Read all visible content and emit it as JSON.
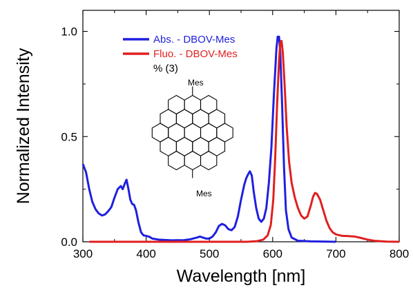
{
  "chart_data": {
    "type": "line",
    "xlabel": "Wavelength [nm]",
    "ylabel": "Normalized Intensity",
    "xlim": [
      300,
      800
    ],
    "ylim": [
      0,
      1.1
    ],
    "x_ticks": [
      "300",
      "400",
      "500",
      "600",
      "700",
      "800"
    ],
    "y_ticks": [
      "0.0",
      "0.5",
      "1.0"
    ],
    "legend_position": "top-left",
    "grid": false,
    "annotation": "% (3)",
    "structure_labels": [
      "Mes",
      "Mes"
    ],
    "series": [
      {
        "name": "Abs. - DBOV-Mes",
        "color": "#1f1fe0",
        "points": [
          [
            300,
            0.37
          ],
          [
            305,
            0.33
          ],
          [
            310,
            0.25
          ],
          [
            315,
            0.19
          ],
          [
            320,
            0.155
          ],
          [
            325,
            0.135
          ],
          [
            330,
            0.125
          ],
          [
            335,
            0.13
          ],
          [
            340,
            0.145
          ],
          [
            345,
            0.165
          ],
          [
            350,
            0.21
          ],
          [
            355,
            0.25
          ],
          [
            360,
            0.265
          ],
          [
            363,
            0.25
          ],
          [
            366,
            0.275
          ],
          [
            369,
            0.295
          ],
          [
            372,
            0.25
          ],
          [
            375,
            0.2
          ],
          [
            378,
            0.18
          ],
          [
            381,
            0.175
          ],
          [
            384,
            0.15
          ],
          [
            388,
            0.09
          ],
          [
            392,
            0.045
          ],
          [
            396,
            0.03
          ],
          [
            400,
            0.028
          ],
          [
            405,
            0.024
          ],
          [
            410,
            0.015
          ],
          [
            420,
            0.01
          ],
          [
            440,
            0.007
          ],
          [
            460,
            0.008
          ],
          [
            470,
            0.012
          ],
          [
            480,
            0.02
          ],
          [
            485,
            0.025
          ],
          [
            490,
            0.02
          ],
          [
            495,
            0.015
          ],
          [
            500,
            0.015
          ],
          [
            505,
            0.025
          ],
          [
            510,
            0.045
          ],
          [
            515,
            0.075
          ],
          [
            520,
            0.085
          ],
          [
            525,
            0.078
          ],
          [
            530,
            0.06
          ],
          [
            535,
            0.055
          ],
          [
            540,
            0.07
          ],
          [
            545,
            0.12
          ],
          [
            550,
            0.2
          ],
          [
            555,
            0.27
          ],
          [
            558,
            0.3
          ],
          [
            561,
            0.32
          ],
          [
            564,
            0.335
          ],
          [
            567,
            0.315
          ],
          [
            570,
            0.24
          ],
          [
            574,
            0.16
          ],
          [
            578,
            0.11
          ],
          [
            582,
            0.095
          ],
          [
            586,
            0.11
          ],
          [
            590,
            0.16
          ],
          [
            594,
            0.28
          ],
          [
            598,
            0.45
          ],
          [
            602,
            0.7
          ],
          [
            606,
            0.92
          ],
          [
            608,
            0.975
          ],
          [
            610,
            0.975
          ],
          [
            612,
            0.9
          ],
          [
            615,
            0.65
          ],
          [
            618,
            0.35
          ],
          [
            621,
            0.15
          ],
          [
            625,
            0.06
          ],
          [
            630,
            0.02
          ],
          [
            640,
            0.005
          ],
          [
            660,
            0.002
          ],
          [
            700,
            0.0
          ]
        ]
      },
      {
        "name": "Fluo. - DBOV-Mes",
        "color": "#e01f1f",
        "points": [
          [
            310,
            0.0
          ],
          [
            560,
            0.0
          ],
          [
            575,
            0.003
          ],
          [
            585,
            0.01
          ],
          [
            592,
            0.03
          ],
          [
            597,
            0.08
          ],
          [
            601,
            0.2
          ],
          [
            604,
            0.4
          ],
          [
            607,
            0.65
          ],
          [
            610,
            0.86
          ],
          [
            612,
            0.945
          ],
          [
            614,
            0.955
          ],
          [
            616,
            0.9
          ],
          [
            619,
            0.74
          ],
          [
            622,
            0.55
          ],
          [
            626,
            0.38
          ],
          [
            630,
            0.28
          ],
          [
            635,
            0.21
          ],
          [
            640,
            0.16
          ],
          [
            645,
            0.125
          ],
          [
            650,
            0.11
          ],
          [
            655,
            0.12
          ],
          [
            660,
            0.17
          ],
          [
            664,
            0.215
          ],
          [
            667,
            0.232
          ],
          [
            670,
            0.228
          ],
          [
            675,
            0.2
          ],
          [
            680,
            0.15
          ],
          [
            685,
            0.1
          ],
          [
            690,
            0.065
          ],
          [
            695,
            0.045
          ],
          [
            700,
            0.035
          ],
          [
            710,
            0.028
          ],
          [
            720,
            0.027
          ],
          [
            730,
            0.025
          ],
          [
            740,
            0.018
          ],
          [
            750,
            0.01
          ],
          [
            760,
            0.005
          ],
          [
            780,
            0.001
          ],
          [
            800,
            0.0
          ]
        ]
      }
    ]
  }
}
